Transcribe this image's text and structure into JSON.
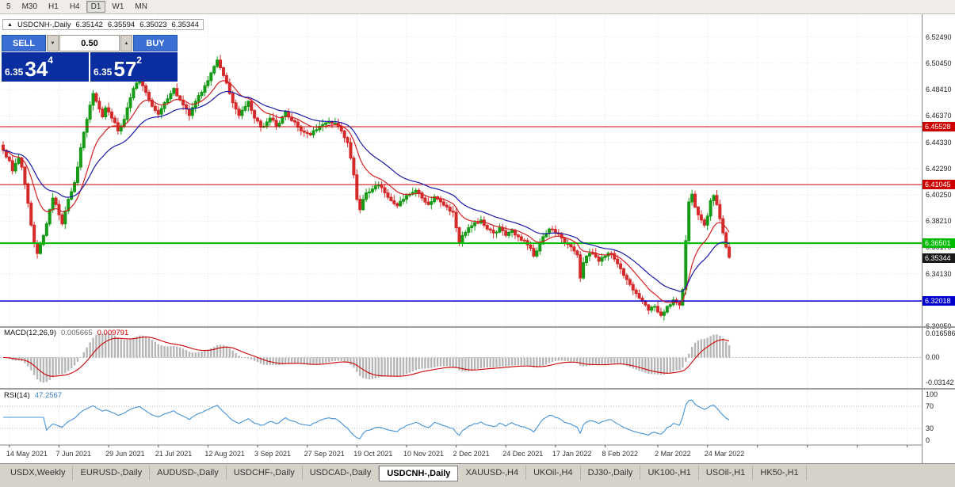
{
  "toolbar": {
    "timeframes": [
      {
        "label": "5",
        "active": false
      },
      {
        "label": "M30",
        "active": false
      },
      {
        "label": "H1",
        "active": false
      },
      {
        "label": "H4",
        "active": false
      },
      {
        "label": "D1",
        "active": true
      },
      {
        "label": "W1",
        "active": false
      },
      {
        "label": "MN",
        "active": false
      }
    ]
  },
  "info_bar": {
    "toggle_glyph": "▲",
    "symbol": "USDCNH-,Daily",
    "open": "6.35142",
    "high": "6.35594",
    "low": "6.35023",
    "close": "6.35344"
  },
  "quote_panel": {
    "sell_label": "SELL",
    "buy_label": "BUY",
    "volume": "0.50",
    "volume_down_glyph": "▼",
    "volume_up_glyph": "▲",
    "sell_price": {
      "prefix": "6.35",
      "big": "34",
      "sup": "4"
    },
    "buy_price": {
      "prefix": "6.35",
      "big": "57",
      "sup": "2"
    }
  },
  "chart_data": {
    "type": "candlestick",
    "title": "USDCNH-,Daily",
    "symbol": "USDCNH-",
    "period": "Daily",
    "ohlc": {
      "open": 6.35142,
      "high": 6.35594,
      "low": 6.35023,
      "close": 6.35344
    },
    "bars": 235,
    "y_range": [
      6.3006,
      6.5425
    ],
    "y_tick_labels": [
      "6.52490",
      "6.50450",
      "6.48410",
      "6.46370",
      "6.44330",
      "6.42290",
      "6.40250",
      "6.38210",
      "6.36170",
      "6.34130",
      "6.32090",
      "6.30050"
    ],
    "x_ticks": [
      {
        "label": "14 May 2021",
        "bar": 2
      },
      {
        "label": "7 Jun 2021",
        "bar": 18
      },
      {
        "label": "29 Jun 2021",
        "bar": 34
      },
      {
        "label": "21 Jul 2021",
        "bar": 50
      },
      {
        "label": "12 Aug 2021",
        "bar": 66
      },
      {
        "label": "3 Sep 2021",
        "bar": 82
      },
      {
        "label": "27 Sep 2021",
        "bar": 98
      },
      {
        "label": "19 Oct 2021",
        "bar": 114
      },
      {
        "label": "10 Nov 2021",
        "bar": 130
      },
      {
        "label": "2 Dec 2021",
        "bar": 146
      },
      {
        "label": "24 Dec 2021",
        "bar": 162
      },
      {
        "label": "17 Jan 2022",
        "bar": 178
      },
      {
        "label": "8 Feb 2022",
        "bar": 194
      },
      {
        "label": "2 Mar 2022",
        "bar": 211
      },
      {
        "label": "24 Mar 2022",
        "bar": 227
      }
    ],
    "close_anchors": [
      [
        0,
        6.437
      ],
      [
        2,
        6.429
      ],
      [
        3,
        6.421
      ],
      [
        5,
        6.431
      ],
      [
        6,
        6.424
      ],
      [
        7,
        6.411
      ],
      [
        8,
        6.396
      ],
      [
        9,
        6.379
      ],
      [
        10,
        6.365
      ],
      [
        11,
        6.357
      ],
      [
        12,
        6.364
      ],
      [
        13,
        6.371
      ],
      [
        14,
        6.38
      ],
      [
        15,
        6.391
      ],
      [
        16,
        6.4
      ],
      [
        17,
        6.395
      ],
      [
        18,
        6.387
      ],
      [
        19,
        6.38
      ],
      [
        20,
        6.39
      ],
      [
        21,
        6.399
      ],
      [
        22,
        6.405
      ],
      [
        23,
        6.412
      ],
      [
        24,
        6.424
      ],
      [
        25,
        6.439
      ],
      [
        26,
        6.451
      ],
      [
        27,
        6.461
      ],
      [
        28,
        6.472
      ],
      [
        29,
        6.481
      ],
      [
        30,
        6.475
      ],
      [
        31,
        6.469
      ],
      [
        32,
        6.463
      ],
      [
        33,
        6.47
      ],
      [
        35,
        6.462
      ],
      [
        37,
        6.452
      ],
      [
        39,
        6.461
      ],
      [
        40,
        6.47
      ],
      [
        42,
        6.485
      ],
      [
        44,
        6.493
      ],
      [
        45,
        6.487
      ],
      [
        47,
        6.476
      ],
      [
        49,
        6.468
      ],
      [
        50,
        6.465
      ],
      [
        52,
        6.474
      ],
      [
        54,
        6.481
      ],
      [
        55,
        6.485
      ],
      [
        57,
        6.476
      ],
      [
        59,
        6.469
      ],
      [
        60,
        6.464
      ],
      [
        62,
        6.475
      ],
      [
        64,
        6.482
      ],
      [
        66,
        6.491
      ],
      [
        68,
        6.502
      ],
      [
        69,
        6.507
      ],
      [
        70,
        6.501
      ],
      [
        71,
        6.495
      ],
      [
        73,
        6.481
      ],
      [
        75,
        6.469
      ],
      [
        76,
        6.464
      ],
      [
        78,
        6.471
      ],
      [
        79,
        6.475
      ],
      [
        81,
        6.462
      ],
      [
        83,
        6.455
      ],
      [
        85,
        6.459
      ],
      [
        86,
        6.462
      ],
      [
        88,
        6.456
      ],
      [
        90,
        6.463
      ],
      [
        91,
        6.467
      ],
      [
        93,
        6.46
      ],
      [
        95,
        6.455
      ],
      [
        97,
        6.451
      ],
      [
        99,
        6.449
      ],
      [
        101,
        6.453
      ],
      [
        103,
        6.457
      ],
      [
        105,
        6.459
      ],
      [
        107,
        6.458
      ],
      [
        109,
        6.452
      ],
      [
        111,
        6.443
      ],
      [
        112,
        6.431
      ],
      [
        113,
        6.418
      ],
      [
        114,
        6.399
      ],
      [
        115,
        6.391
      ],
      [
        116,
        6.399
      ],
      [
        117,
        6.404
      ],
      [
        119,
        6.407
      ],
      [
        121,
        6.41
      ],
      [
        123,
        6.404
      ],
      [
        125,
        6.398
      ],
      [
        127,
        6.394
      ],
      [
        129,
        6.399
      ],
      [
        131,
        6.403
      ],
      [
        133,
        6.406
      ],
      [
        135,
        6.4
      ],
      [
        137,
        6.395
      ],
      [
        139,
        6.401
      ],
      [
        141,
        6.397
      ],
      [
        143,
        6.393
      ],
      [
        145,
        6.389
      ],
      [
        146,
        6.377
      ],
      [
        147,
        6.365
      ],
      [
        148,
        6.371
      ],
      [
        150,
        6.377
      ],
      [
        152,
        6.381
      ],
      [
        154,
        6.383
      ],
      [
        156,
        6.376
      ],
      [
        158,
        6.373
      ],
      [
        160,
        6.377
      ],
      [
        162,
        6.371
      ],
      [
        164,
        6.375
      ],
      [
        166,
        6.37
      ],
      [
        168,
        6.367
      ],
      [
        170,
        6.361
      ],
      [
        171,
        6.355
      ],
      [
        172,
        6.359
      ],
      [
        174,
        6.37
      ],
      [
        176,
        6.376
      ],
      [
        178,
        6.373
      ],
      [
        180,
        6.369
      ],
      [
        182,
        6.364
      ],
      [
        184,
        6.359
      ],
      [
        185,
        6.356
      ],
      [
        186,
        6.338
      ],
      [
        187,
        6.35
      ],
      [
        188,
        6.355
      ],
      [
        190,
        6.357
      ],
      [
        192,
        6.351
      ],
      [
        194,
        6.355
      ],
      [
        196,
        6.357
      ],
      [
        198,
        6.349
      ],
      [
        200,
        6.34
      ],
      [
        202,
        6.333
      ],
      [
        204,
        6.326
      ],
      [
        206,
        6.32
      ],
      [
        208,
        6.313
      ],
      [
        210,
        6.316
      ],
      [
        212,
        6.309
      ],
      [
        214,
        6.316
      ],
      [
        216,
        6.321
      ],
      [
        218,
        6.317
      ],
      [
        219,
        6.329
      ],
      [
        220,
        6.367
      ],
      [
        221,
        6.397
      ],
      [
        222,
        6.403
      ],
      [
        223,
        6.393
      ],
      [
        224,
        6.387
      ],
      [
        225,
        6.383
      ],
      [
        226,
        6.379
      ],
      [
        227,
        6.386
      ],
      [
        228,
        6.398
      ],
      [
        229,
        6.402
      ],
      [
        230,
        6.395
      ],
      [
        231,
        6.384
      ],
      [
        232,
        6.373
      ],
      [
        233,
        6.362
      ],
      [
        234,
        6.354
      ]
    ],
    "candle_up_color": "#169b16",
    "candle_down_color": "#d42a2a",
    "moving_averages": [
      {
        "type": "EMA",
        "period": 12,
        "color": "#d42222"
      },
      {
        "type": "EMA",
        "period": 26,
        "color": "#1a1aa8"
      }
    ],
    "levels": [
      {
        "label": "6.45528",
        "price": 6.45528,
        "color": "#cc0000",
        "width": 1
      },
      {
        "label": "6.41045",
        "price": 6.41045,
        "color": "#cc0000",
        "width": 1
      },
      {
        "label": "6.36501",
        "price": 6.36501,
        "color": "#00bb00",
        "width": 2
      },
      {
        "label": "6.32018",
        "price": 6.32018,
        "color": "#0000cc",
        "width": 1.5
      }
    ],
    "current_price": {
      "label": "6.35344",
      "price": 6.35344,
      "color": "#1a1a1a"
    },
    "indicators": {
      "macd": {
        "title": "MACD(12,26,9)",
        "value_main": "0.005665",
        "value_signal": "0.009791",
        "fast": 12,
        "slow": 26,
        "signal": 9,
        "axis_labels": [
          "0.016586",
          "0.00",
          "-0.03142"
        ],
        "histogram_color": "#b6b6b6",
        "signal_color": "#cc0000"
      },
      "rsi": {
        "title": "RSI(14)",
        "value": "47.2567",
        "period": 14,
        "levels": [
          70,
          30
        ],
        "axis_labels": [
          "100",
          "70",
          "30",
          "0"
        ],
        "line_color": "#4592d8"
      }
    }
  },
  "tabs": {
    "items": [
      {
        "label": "USDX,Weekly",
        "active": false
      },
      {
        "label": "EURUSD-,Daily",
        "active": false
      },
      {
        "label": "AUDUSD-,Daily",
        "active": false
      },
      {
        "label": "USDCHF-,Daily",
        "active": false
      },
      {
        "label": "USDCAD-,Daily",
        "active": false
      },
      {
        "label": "USDCNH-,Daily",
        "active": true
      },
      {
        "label": "XAUUSD-,H4",
        "active": false
      },
      {
        "label": "UKOil-,H4",
        "active": false
      },
      {
        "label": "DJ30-,Daily",
        "active": false
      },
      {
        "label": "UK100-,H1",
        "active": false
      },
      {
        "label": "USOil-,H1",
        "active": false
      },
      {
        "label": "HK50-,H1",
        "active": false
      }
    ]
  }
}
